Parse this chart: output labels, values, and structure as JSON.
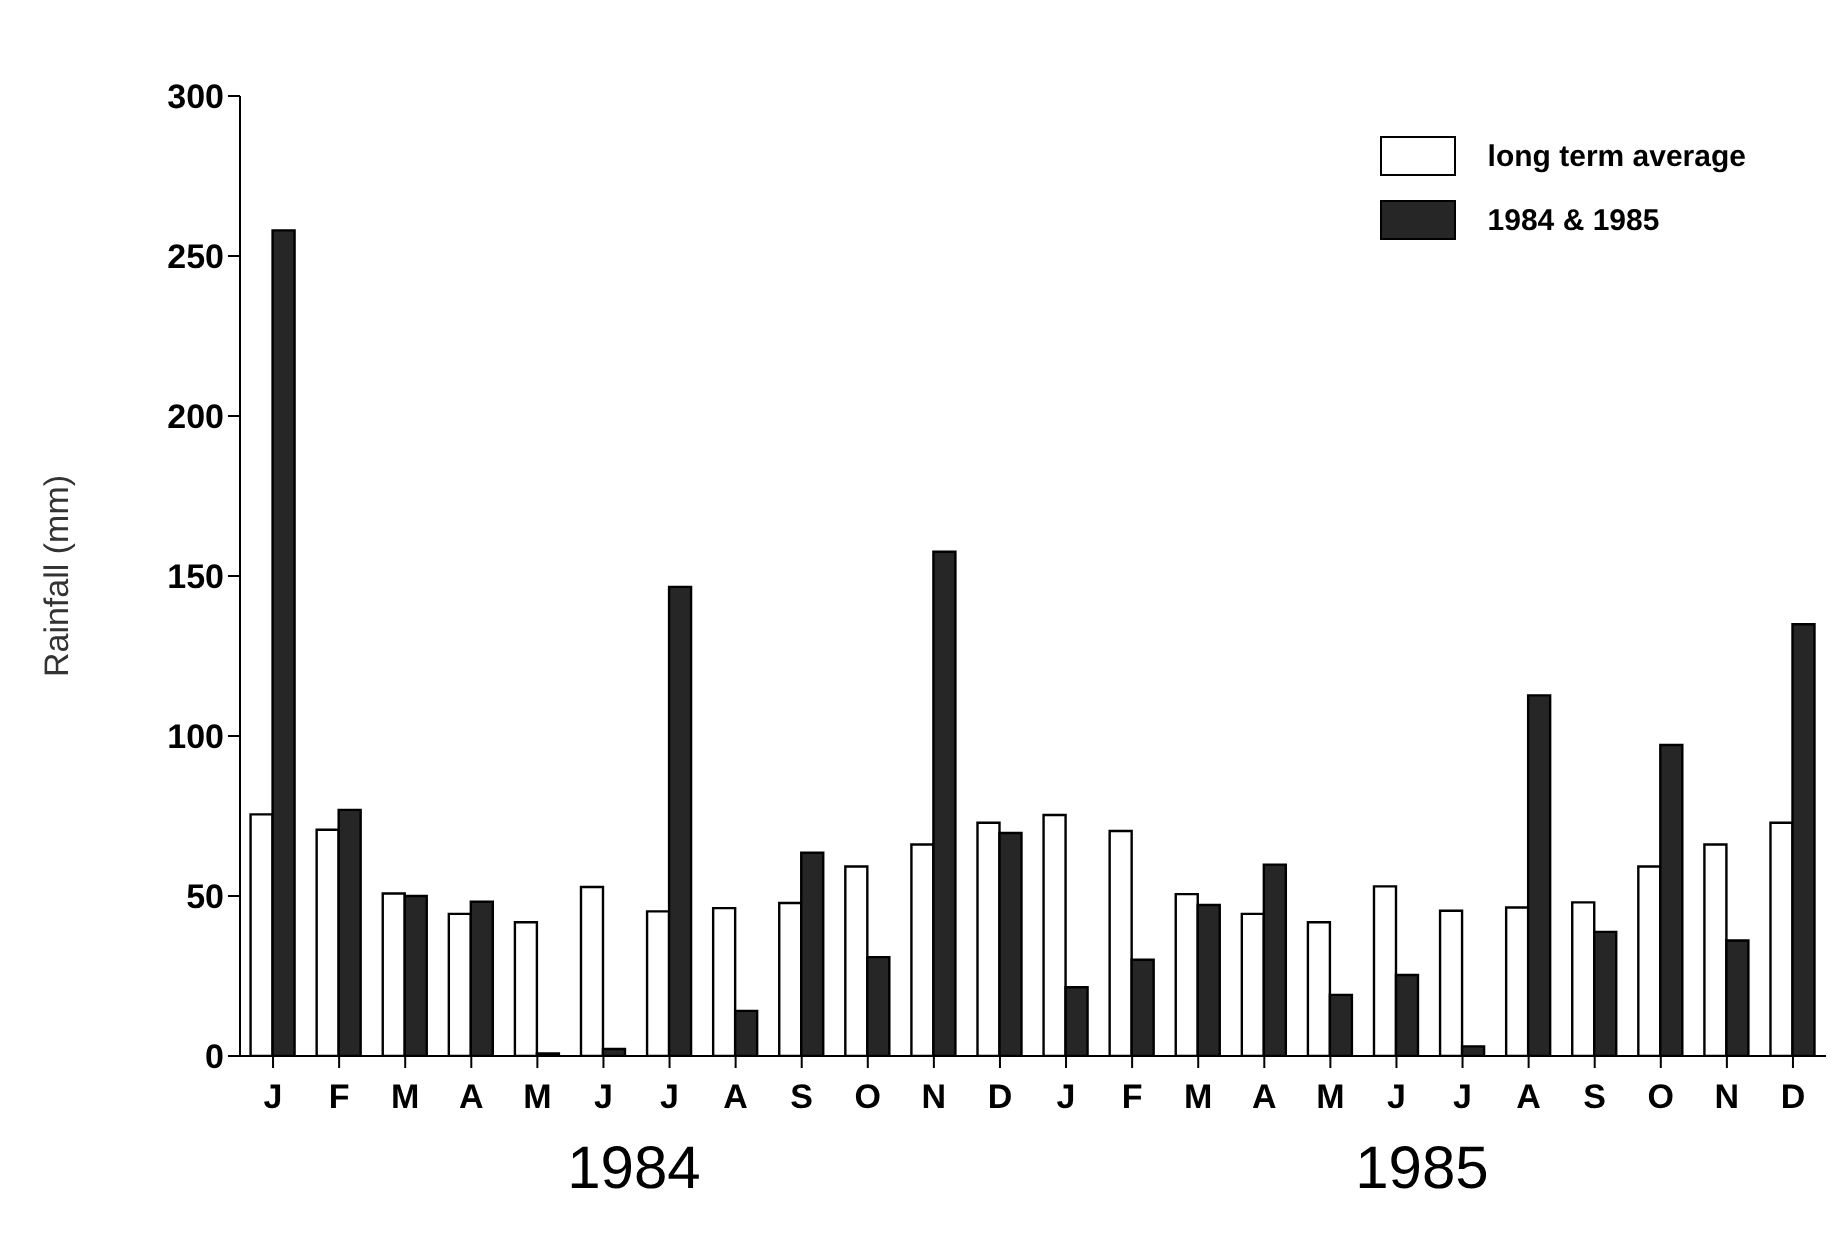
{
  "chart_data": {
    "type": "bar",
    "ylabel": "Rainfall (mm)",
    "categories": [
      "J",
      "F",
      "M",
      "A",
      "M",
      "J",
      "J",
      "A",
      "S",
      "O",
      "N",
      "D",
      "J",
      "F",
      "M",
      "A",
      "M",
      "J",
      "J",
      "A",
      "S",
      "O",
      "N",
      "D"
    ],
    "series": [
      {
        "name": "long term average",
        "color": "#ffffff",
        "values": [
          75.5,
          70.7,
          50.8,
          44.4,
          41.8,
          52.8,
          45.2,
          46.2,
          47.8,
          59.2,
          66.1,
          72.9,
          75.3,
          70.3,
          50.6,
          44.4,
          41.8,
          53,
          45.4,
          46.4,
          48,
          59.2,
          66.1,
          72.9
        ]
      },
      {
        "name": "1984 & 1985",
        "color": "#262626",
        "values": [
          258,
          76.9,
          50,
          48.2,
          0.8,
          2.2,
          146.6,
          14.1,
          63.5,
          30.9,
          157.6,
          69.7,
          21.5,
          30.1,
          47.2,
          59.8,
          19.1,
          25.3,
          3,
          112.7,
          38.8,
          97.2,
          36.1,
          134.9
        ]
      }
    ],
    "ylim": [
      0,
      300
    ],
    "yticks": [
      0,
      50,
      100,
      150,
      200,
      250,
      300
    ],
    "grid": false,
    "legend": "top right",
    "annotations": [
      "1984",
      "1985"
    ]
  }
}
